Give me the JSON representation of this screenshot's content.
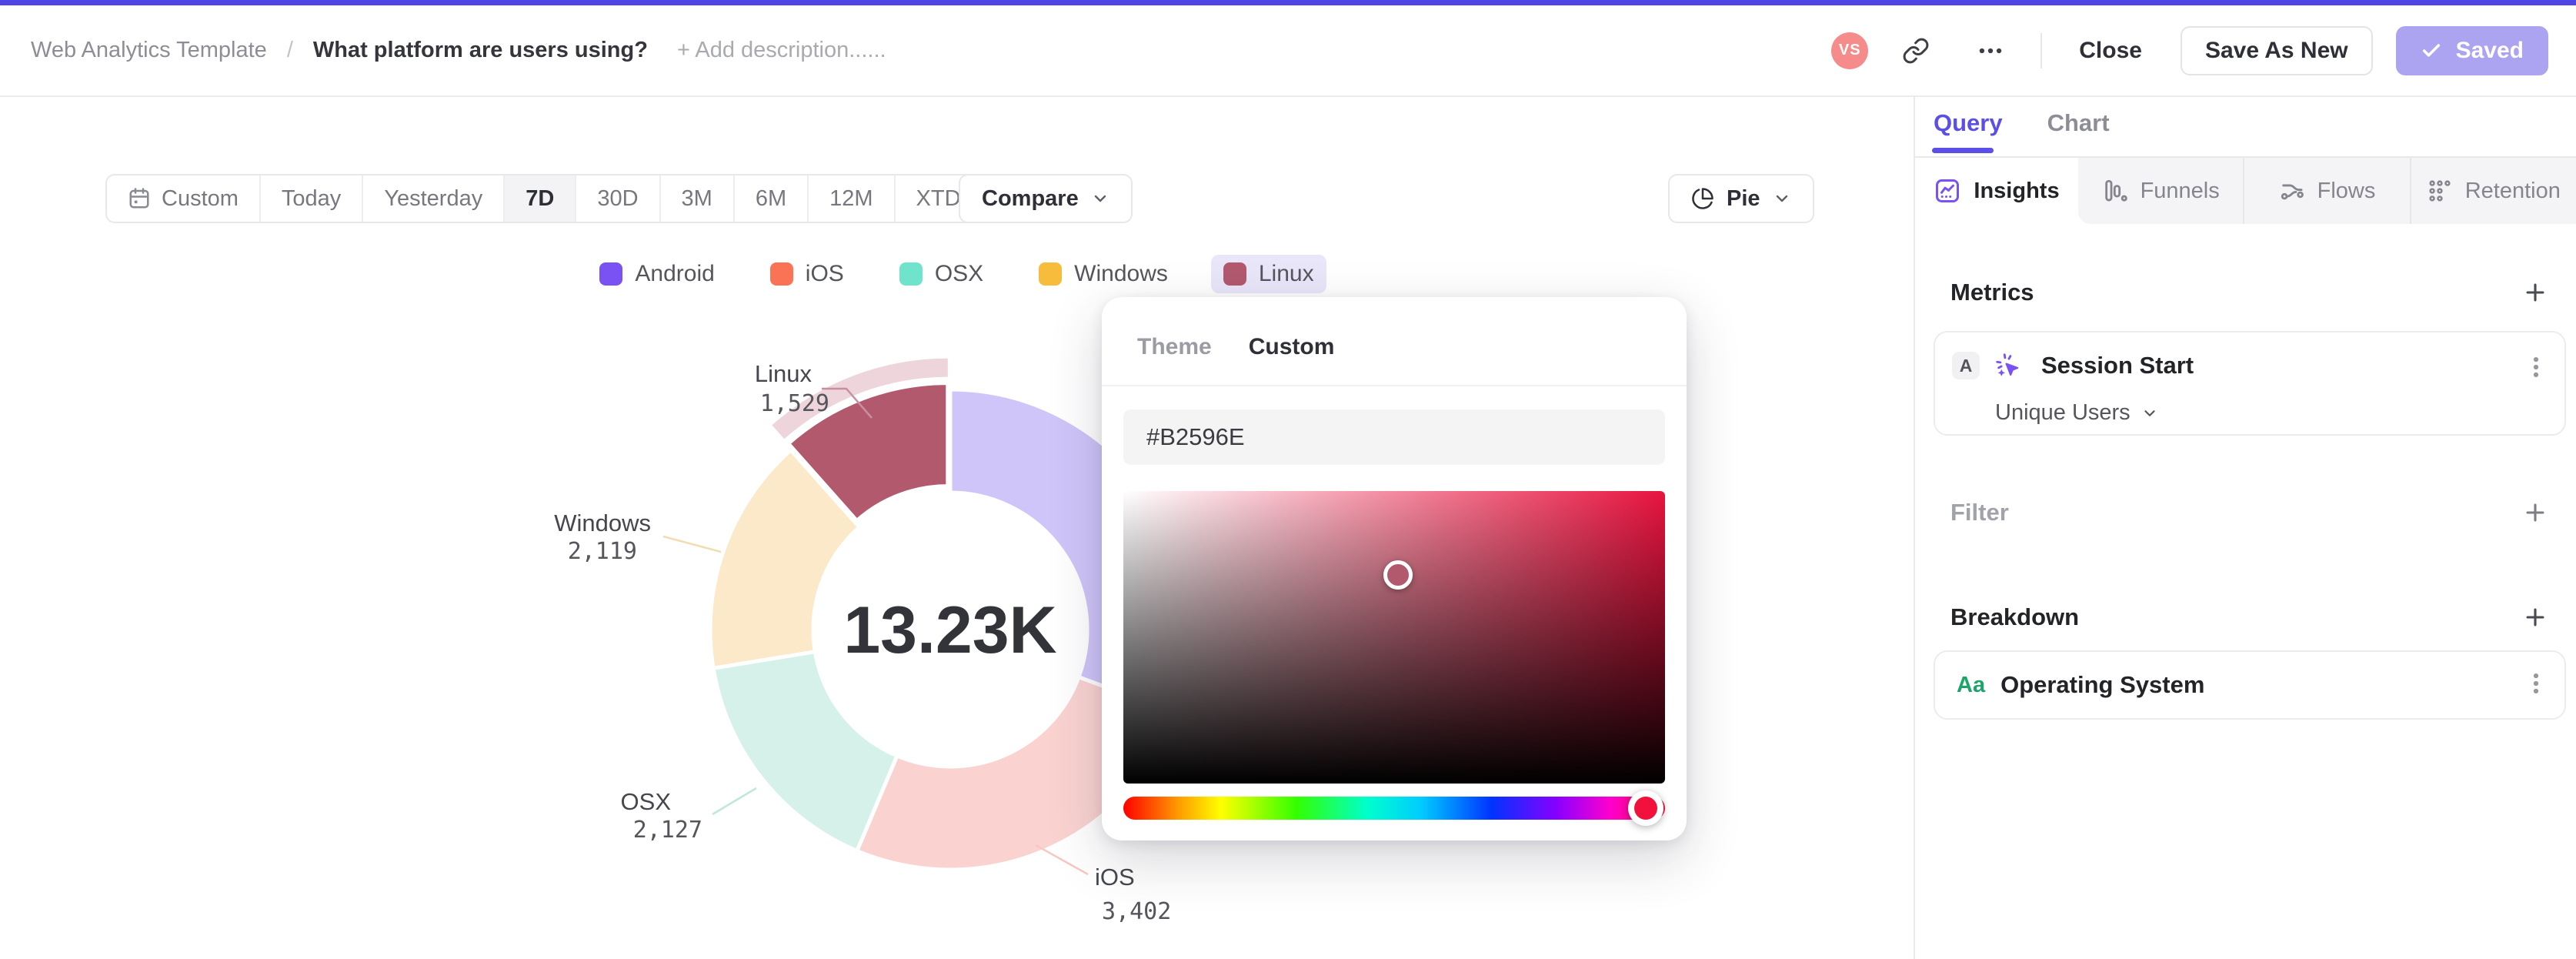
{
  "header": {
    "breadcrumb_project": "Web Analytics Template",
    "breadcrumb_separator": "/",
    "title": "What platform are users using?",
    "add_description": "+ Add description......",
    "avatar_initials": "VS",
    "close_label": "Close",
    "save_as_new_label": "Save As New",
    "saved_label": "Saved"
  },
  "toolbar": {
    "date_ranges": [
      {
        "label": "Custom",
        "icon": "calendar",
        "active": false,
        "dropdown": false
      },
      {
        "label": "Today",
        "active": false,
        "dropdown": false
      },
      {
        "label": "Yesterday",
        "active": false,
        "dropdown": false
      },
      {
        "label": "7D",
        "active": true,
        "dropdown": false
      },
      {
        "label": "30D",
        "active": false,
        "dropdown": false
      },
      {
        "label": "3M",
        "active": false,
        "dropdown": false
      },
      {
        "label": "6M",
        "active": false,
        "dropdown": false
      },
      {
        "label": "12M",
        "active": false,
        "dropdown": false
      },
      {
        "label": "XTD",
        "active": false,
        "dropdown": true
      }
    ],
    "compare_label": "Compare",
    "chart_type_label": "Pie"
  },
  "legend": {
    "items": [
      {
        "label": "Android",
        "color": "#7A52F4",
        "selected": false
      },
      {
        "label": "iOS",
        "color": "#F97354",
        "selected": false
      },
      {
        "label": "OSX",
        "color": "#6FE3CB",
        "selected": false
      },
      {
        "label": "Windows",
        "color": "#F8BC3C",
        "selected": false
      },
      {
        "label": "Linux",
        "color": "#B2596E",
        "selected": true
      }
    ],
    "selected_pill_color": "#E9E6FA"
  },
  "chart_data": {
    "type": "pie",
    "donut": true,
    "title": "What platform are users using?",
    "center_total": "13.23K",
    "total_value": 13230,
    "categories": [
      "Android",
      "iOS",
      "OSX",
      "Windows",
      "Linux"
    ],
    "values": [
      4053,
      3402,
      2127,
      2119,
      1529
    ],
    "selected_slice": "Linux",
    "slice_colors": {
      "Android": "#7A52F4",
      "iOS": "#F97354",
      "OSX": "#6FE3CB",
      "Windows": "#F8BC3C",
      "Linux": "#B2596E"
    },
    "muted_slice_colors": {
      "Android": "#CFC5F9",
      "iOS": "#FAD3D1",
      "OSX": "#D5F1E9",
      "Windows": "#FBE9CA",
      "Linux": "#B2596E"
    },
    "selection_ring_color": "#EDD5DB",
    "visible_value_labels": {
      "Linux": "1,529",
      "Windows": "2,119",
      "OSX": "2,127",
      "iOS": "3,402"
    },
    "legend_position": "top"
  },
  "color_picker": {
    "tabs": [
      {
        "label": "Theme",
        "active": false
      },
      {
        "label": "Custom",
        "active": true
      }
    ],
    "hex_value": "#B2596E",
    "hue_handle_color": "#F2103C"
  },
  "sidebar": {
    "tabs": [
      {
        "label": "Query",
        "active": true
      },
      {
        "label": "Chart",
        "active": false
      }
    ],
    "subtabs": [
      {
        "label": "Insights",
        "icon": "insights",
        "active": true
      },
      {
        "label": "Funnels",
        "icon": "funnels",
        "active": false
      },
      {
        "label": "Flows",
        "icon": "flows",
        "active": false
      },
      {
        "label": "Retention",
        "icon": "retention",
        "active": false
      }
    ],
    "metrics": {
      "heading": "Metrics",
      "card": {
        "badge": "A",
        "label": "Session Start",
        "aggregation": "Unique Users"
      }
    },
    "filter": {
      "heading": "Filter"
    },
    "breakdown": {
      "heading": "Breakdown",
      "card": {
        "icon_label": "Aa",
        "label": "Operating System"
      }
    }
  }
}
